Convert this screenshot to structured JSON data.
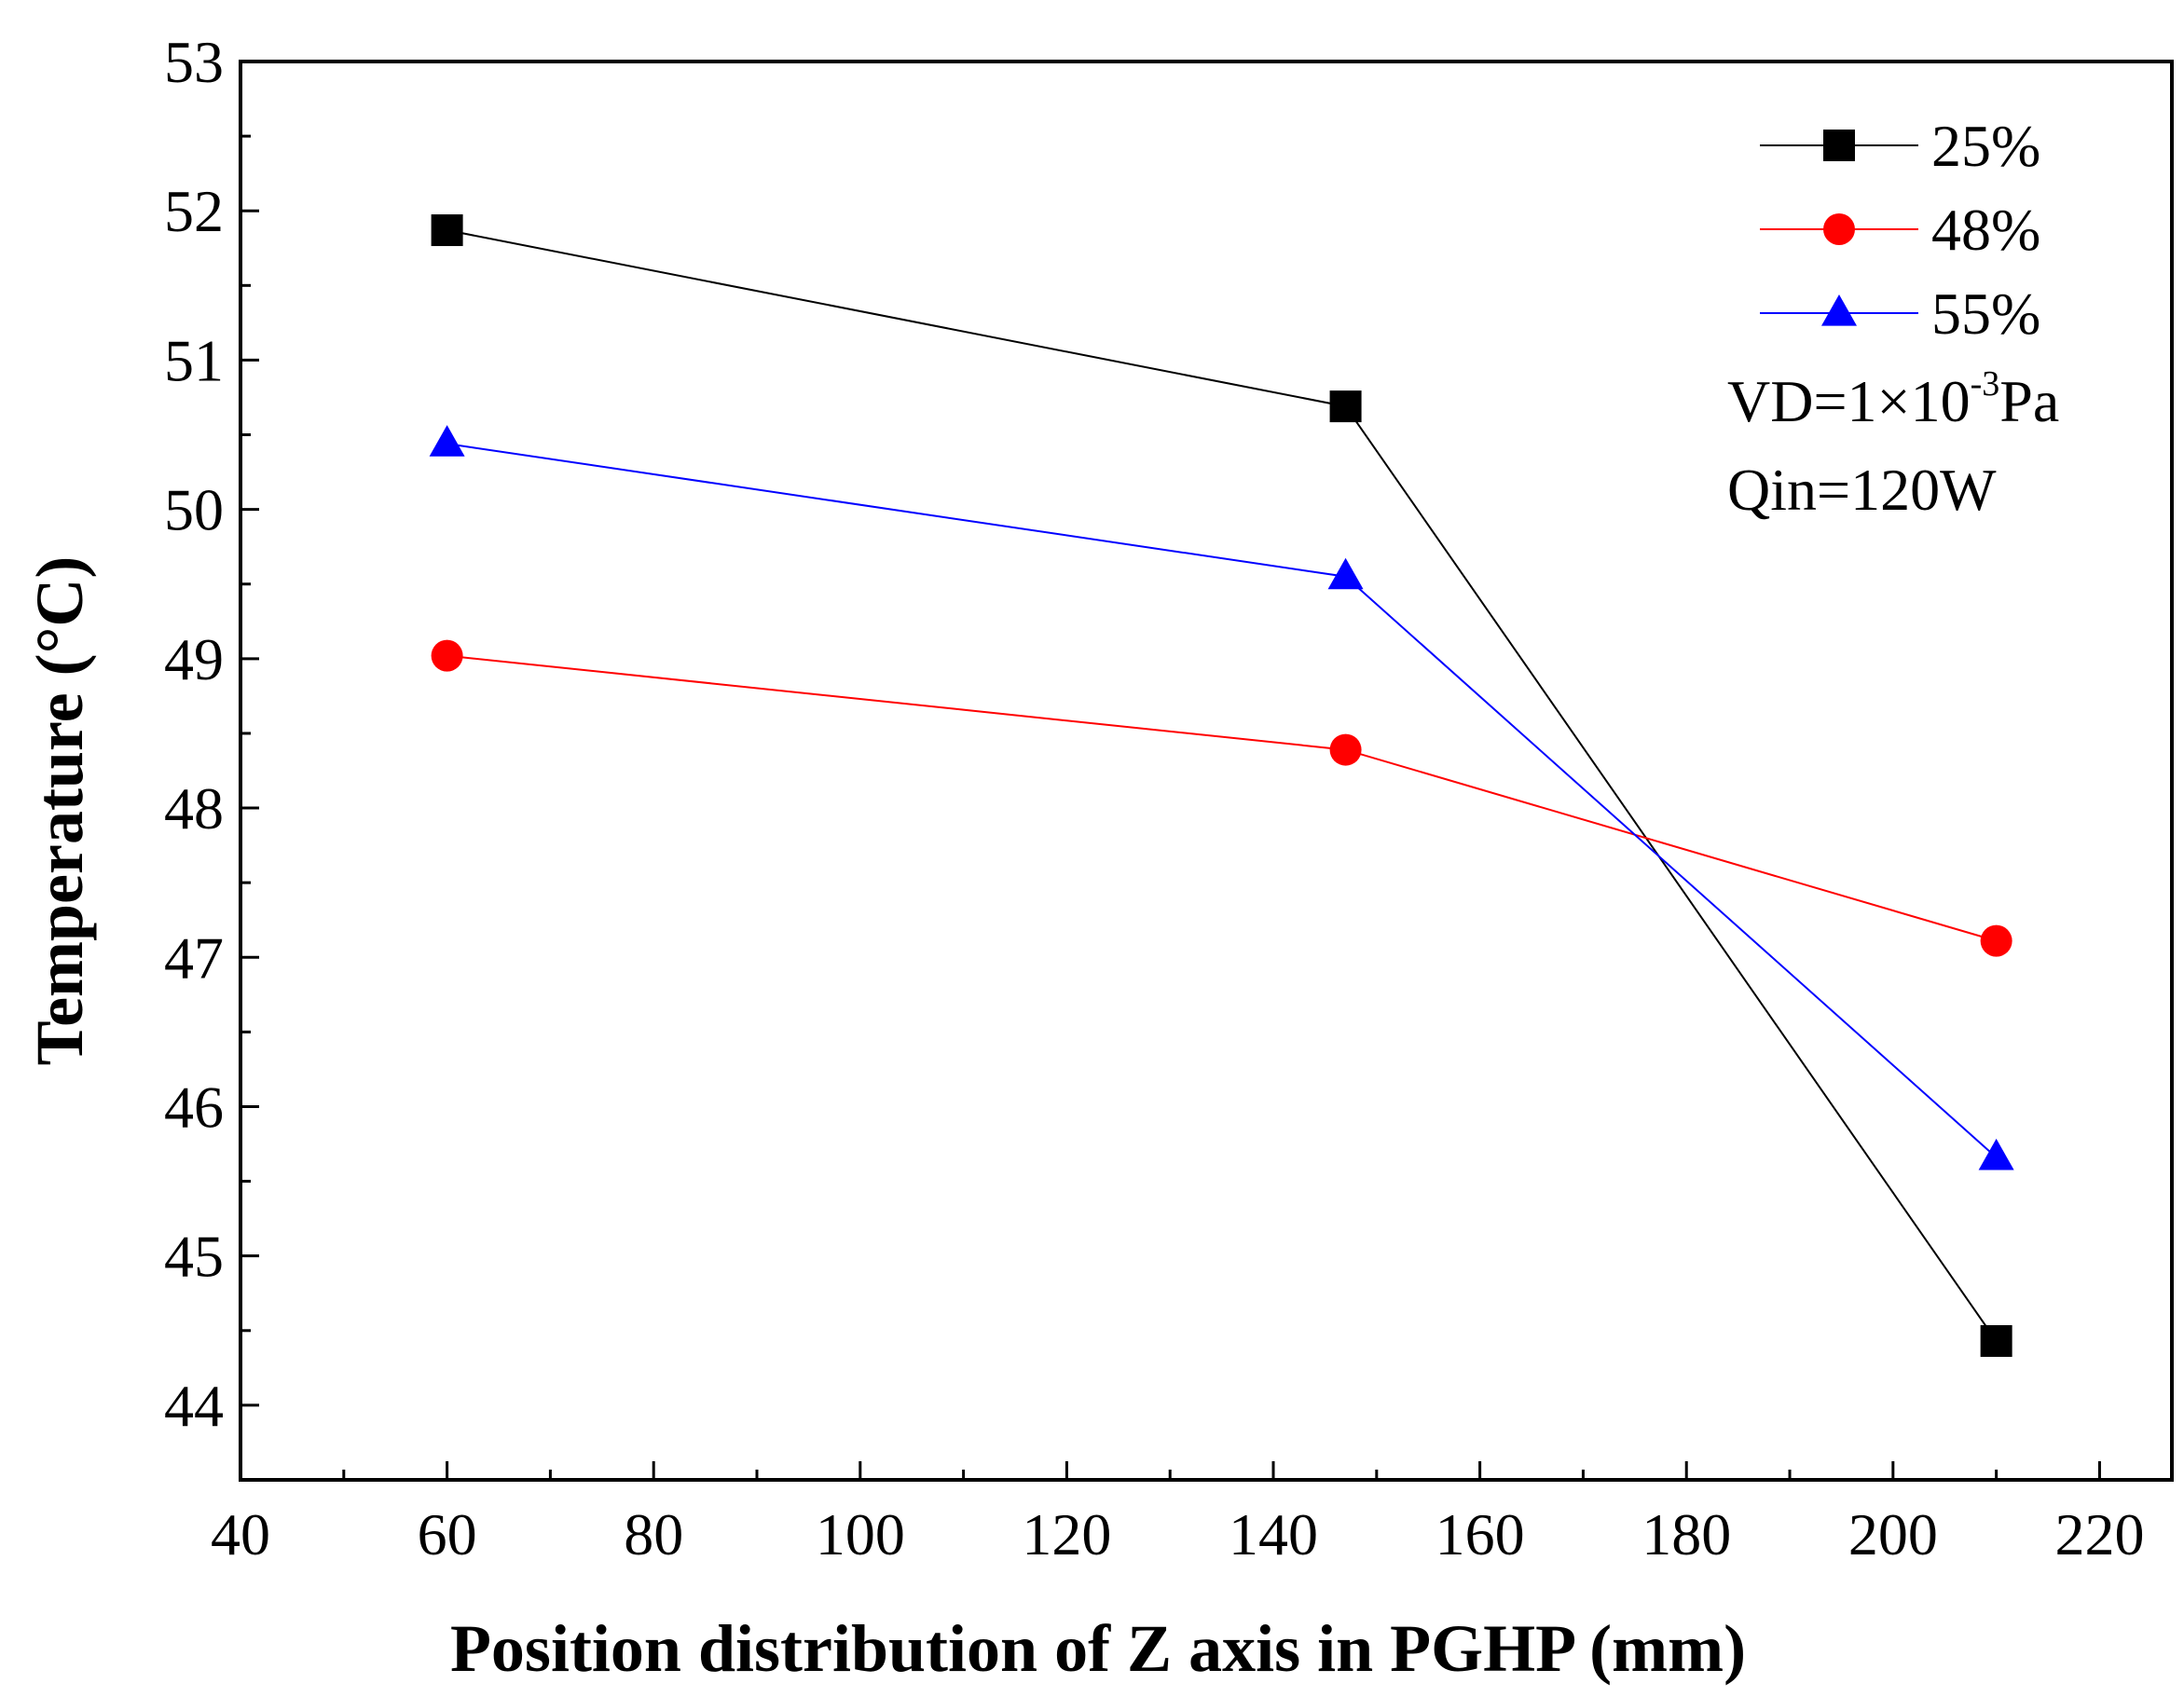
{
  "chart_data": {
    "type": "line",
    "title": "",
    "xlabel": "Position distribution of Z axis in PGHP (mm)",
    "ylabel": "Temperature (°C)",
    "xlim": [
      40,
      227
    ],
    "ylim": [
      43.5,
      53
    ],
    "xticks": [
      40,
      60,
      80,
      100,
      120,
      140,
      160,
      180,
      200,
      220
    ],
    "yticks": [
      44,
      45,
      46,
      47,
      48,
      49,
      50,
      51,
      52,
      53
    ],
    "x_tick_labels": [
      "40",
      "60",
      "80",
      "100",
      "120",
      "140",
      "160",
      "180",
      "200",
      "220"
    ],
    "y_tick_labels": [
      "44",
      "45",
      "46",
      "47",
      "48",
      "49",
      "50",
      "51",
      "52",
      "53"
    ],
    "grid": false,
    "legend_position": "top-right",
    "series": [
      {
        "name": "25%",
        "color": "#000000",
        "marker": "square",
        "x": [
          60,
          147,
          210
        ],
        "values": [
          51.87,
          50.69,
          44.43
        ]
      },
      {
        "name": "48%",
        "color": "#ff0000",
        "marker": "circle",
        "x": [
          60,
          147,
          210
        ],
        "values": [
          49.02,
          48.39,
          47.11
        ]
      },
      {
        "name": "55%",
        "color": "#0000ff",
        "marker": "triangle",
        "x": [
          60,
          147,
          210
        ],
        "values": [
          50.44,
          49.55,
          45.66
        ]
      }
    ],
    "annotations": {
      "vd_prefix": "VD=1×10",
      "vd_exponent": "-3",
      "vd_suffix": "Pa",
      "qin": "Qin=120W"
    }
  }
}
